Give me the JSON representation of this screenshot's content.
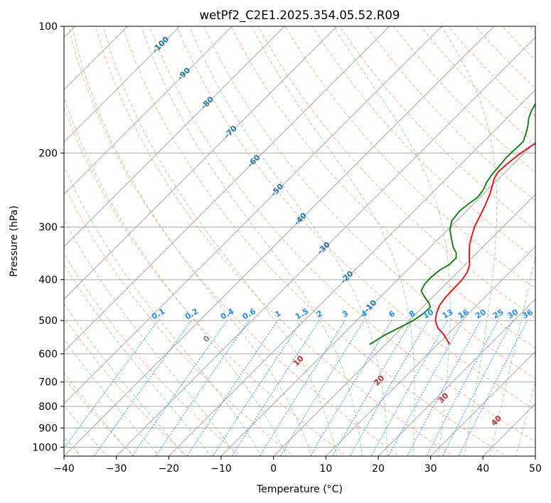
{
  "chart_data": {
    "type": "skew-t",
    "title": "wetPf2_C2E1.2025.354.05.52.R09",
    "xlabel": "Temperature (°C)",
    "ylabel": "Pressure (hPa)",
    "xlim": [
      -40,
      50
    ],
    "ylim_hpa": [
      1050,
      100
    ],
    "x_ticks": [
      "−40",
      "−30",
      "−20",
      "−10",
      "0",
      "10",
      "20",
      "30",
      "40",
      "50"
    ],
    "y_ticks": [
      "100",
      "200",
      "300",
      "400",
      "500",
      "600",
      "700",
      "800",
      "900",
      "1000"
    ],
    "series": [
      {
        "name": "temperature",
        "color": "#ff0000",
        "points": [
          [
            570,
            12.3
          ],
          [
            540,
            9.3
          ],
          [
            520,
            6.8
          ],
          [
            500,
            5.0
          ],
          [
            480,
            3.8
          ],
          [
            460,
            2.9
          ],
          [
            440,
            2.5
          ],
          [
            420,
            2.4
          ],
          [
            400,
            2.3
          ],
          [
            385,
            1.9
          ],
          [
            370,
            1.0
          ],
          [
            350,
            -1.0
          ],
          [
            330,
            -3.0
          ],
          [
            310,
            -4.6
          ],
          [
            300,
            -5.4
          ],
          [
            280,
            -6.6
          ],
          [
            265,
            -7.6
          ],
          [
            250,
            -8.8
          ],
          [
            240,
            -9.8
          ],
          [
            230,
            -10.9
          ],
          [
            222,
            -11.4
          ],
          [
            212,
            -11.2
          ],
          [
            202,
            -10.8
          ],
          [
            192,
            -10.0
          ],
          [
            185,
            -9.0
          ],
          [
            178,
            -7.2
          ],
          [
            172,
            -4.3
          ],
          [
            165,
            -1.7
          ],
          [
            158,
            0.0
          ],
          [
            150,
            0.8
          ],
          [
            140,
            1.4
          ],
          [
            130,
            1.9
          ],
          [
            120,
            2.5
          ],
          [
            112,
            3.0
          ],
          [
            105,
            3.4
          ],
          [
            100,
            3.5
          ]
        ]
      },
      {
        "name": "dewpoint",
        "color": "#008000",
        "points": [
          [
            570,
            -3.0
          ],
          [
            540,
            -1.8
          ],
          [
            520,
            -0.5
          ],
          [
            500,
            0.8
          ],
          [
            480,
            1.4
          ],
          [
            465,
            1.5
          ],
          [
            455,
            0.5
          ],
          [
            440,
            -1.5
          ],
          [
            425,
            -3.4
          ],
          [
            410,
            -4.0
          ],
          [
            395,
            -4.1
          ],
          [
            380,
            -3.8
          ],
          [
            368,
            -3.0
          ],
          [
            355,
            -3.0
          ],
          [
            345,
            -4.0
          ],
          [
            335,
            -5.6
          ],
          [
            320,
            -7.5
          ],
          [
            305,
            -9.5
          ],
          [
            290,
            -10.9
          ],
          [
            275,
            -11.3
          ],
          [
            265,
            -11.0
          ],
          [
            255,
            -10.5
          ],
          [
            245,
            -10.8
          ],
          [
            235,
            -11.6
          ],
          [
            225,
            -12.1
          ],
          [
            215,
            -12.3
          ],
          [
            205,
            -12.6
          ],
          [
            195,
            -12.5
          ],
          [
            188,
            -12.4
          ],
          [
            180,
            -13.4
          ],
          [
            172,
            -14.6
          ],
          [
            165,
            -15.9
          ],
          [
            158,
            -16.8
          ],
          [
            150,
            -17.6
          ],
          [
            143,
            -17.9
          ],
          [
            138,
            -17.6
          ],
          [
            132,
            -16.8
          ],
          [
            125,
            -15.5
          ],
          [
            118,
            -14.2
          ],
          [
            112,
            -12.9
          ],
          [
            106,
            -11.2
          ],
          [
            100,
            -9.6
          ]
        ]
      }
    ],
    "isotherm_labels": [
      "-100",
      "-90",
      "-80",
      "-70",
      "-60",
      "-50",
      "-40",
      "-30",
      "-20",
      "-10"
    ],
    "mixing_ratio_labels": [
      "0.1",
      "0.2",
      "0.4",
      "0.6",
      "1",
      "1.5",
      "2",
      "3",
      "4",
      "6",
      "8",
      "10",
      "13",
      "16",
      "20",
      "25",
      "30",
      "36"
    ],
    "moist_adiabat_labels": [
      "0",
      "10",
      "20",
      "30",
      "40"
    ],
    "colors": {
      "isotherm": "#aaaaaa",
      "isotherm_label": "#1f77b4",
      "dry_adiabat": "#ffa07a",
      "moist_adiabat": "#8fc98f",
      "mixing_ratio": "#1e90ff",
      "moist_label": "#d62728",
      "zero_label": "#808080"
    }
  }
}
